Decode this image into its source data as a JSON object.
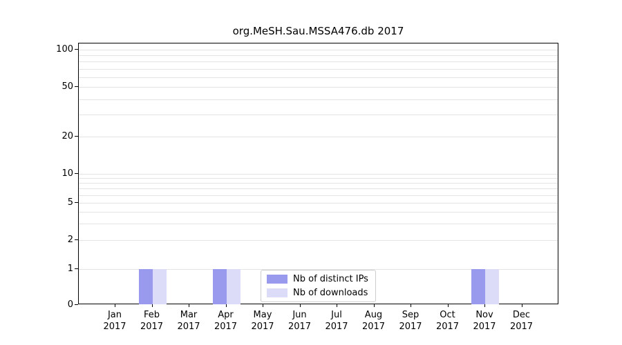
{
  "chart_data": {
    "type": "bar",
    "title": "org.MeSH.Sau.MSSA476.db 2017",
    "year_label": "2017",
    "categories": [
      "Jan",
      "Feb",
      "Mar",
      "Apr",
      "May",
      "Jun",
      "Jul",
      "Aug",
      "Sep",
      "Oct",
      "Nov",
      "Dec"
    ],
    "series": [
      {
        "name": "Nb of distinct IPs",
        "color": "#9999ee",
        "values": [
          0,
          1,
          0,
          1,
          0,
          0,
          0,
          0,
          0,
          0,
          1,
          0
        ]
      },
      {
        "name": "Nb of downloads",
        "color": "#dcdcf8",
        "values": [
          0,
          1,
          0,
          1,
          0,
          0,
          0,
          0,
          0,
          0,
          1,
          0
        ]
      }
    ],
    "yticks": [
      0,
      1,
      2,
      5,
      10,
      20,
      50,
      100
    ],
    "ylim": [
      0,
      100
    ],
    "yscale": "log-like with zero baseline",
    "grid": "horizontal log minor gridlines",
    "legend_position": "lower center"
  }
}
